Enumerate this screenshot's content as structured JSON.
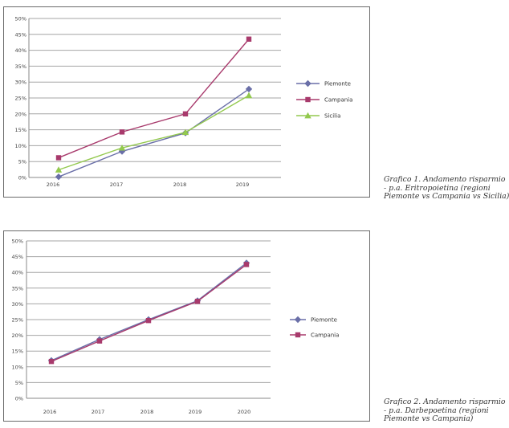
{
  "charts": [
    {
      "caption": [
        "Grafico 1. Andamento risparmio",
        "- p.a. Eritropoietina (regioni",
        "Piemonte vs Campania vs Sicilia)"
      ]
    },
    {
      "caption": [
        "Grafico 2. Andamento risparmio",
        "- p.a. Darbepoetina (regioni",
        "Piemonte vs Campania)"
      ]
    }
  ],
  "chart_data": [
    {
      "type": "line",
      "categories": [
        "2016",
        "2017",
        "2018",
        "2019"
      ],
      "ylim": [
        0,
        50
      ],
      "yticks": [
        "0%",
        "5%",
        "10%",
        "15%",
        "20%",
        "25%",
        "30%",
        "35%",
        "40%",
        "45%",
        "50%"
      ],
      "grid": "horizontal",
      "legend": "right",
      "series": [
        {
          "name": "Piemonte",
          "values": [
            0.2,
            8.2,
            14.0,
            27.8
          ],
          "color": "#6a6fa8",
          "marker": "diamond"
        },
        {
          "name": "Campania",
          "values": [
            6.2,
            14.3,
            20.0,
            43.5
          ],
          "color": "#a83a6c",
          "marker": "square"
        },
        {
          "name": "Sicilia",
          "values": [
            2.4,
            9.3,
            14.2,
            25.8
          ],
          "color": "#93c94e",
          "marker": "triangle"
        }
      ]
    },
    {
      "type": "line",
      "categories": [
        "2016",
        "2017",
        "2018",
        "2019",
        "2020"
      ],
      "ylim": [
        0,
        50
      ],
      "yticks": [
        "0%",
        "5%",
        "10%",
        "15%",
        "20%",
        "25%",
        "30%",
        "35%",
        "40%",
        "45%",
        "50%"
      ],
      "grid": "horizontal",
      "legend": "right",
      "series": [
        {
          "name": "Piemonte",
          "values": [
            12.0,
            18.7,
            25.0,
            31.0,
            43.0
          ],
          "color": "#6a6fa8",
          "marker": "diamond"
        },
        {
          "name": "Campania",
          "values": [
            11.7,
            18.2,
            24.7,
            30.8,
            42.5
          ],
          "color": "#a83a6c",
          "marker": "square"
        }
      ]
    }
  ]
}
